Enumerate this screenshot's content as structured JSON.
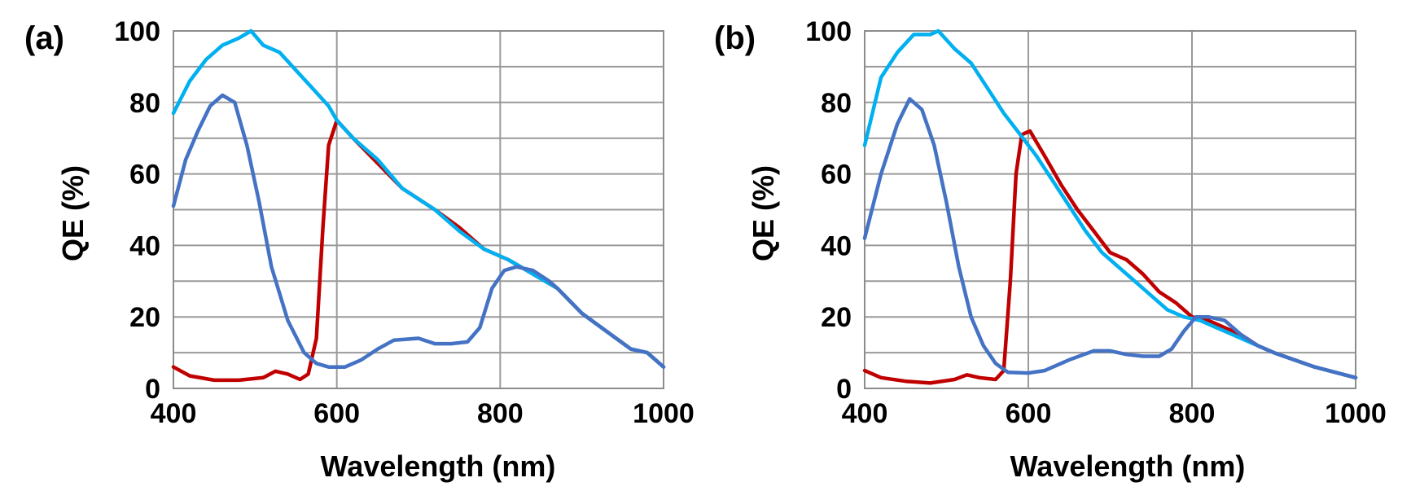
{
  "chart_data": [
    {
      "type": "line",
      "panel_label": "(a)",
      "xlabel": "Wavelength (nm)",
      "ylabel": "QE (%)",
      "xlim": [
        400,
        1000
      ],
      "ylim": [
        0,
        100
      ],
      "x_ticks": [
        "400",
        "600",
        "800",
        "1000"
      ],
      "y_ticks": [
        "0",
        "20",
        "40",
        "60",
        "80",
        "100"
      ],
      "grid": true,
      "series": [
        {
          "color": "#c00000",
          "points": [
            [
              400,
              6
            ],
            [
              420,
              3.5
            ],
            [
              450,
              2.3
            ],
            [
              480,
              2.3
            ],
            [
              510,
              3
            ],
            [
              525,
              4.8
            ],
            [
              540,
              4
            ],
            [
              555,
              2.5
            ],
            [
              565,
              4
            ],
            [
              575,
              14
            ],
            [
              583,
              45
            ],
            [
              590,
              68
            ],
            [
              600,
              75
            ],
            [
              620,
              70
            ],
            [
              650,
              63
            ],
            [
              680,
              56
            ],
            [
              720,
              50
            ],
            [
              750,
              45
            ],
            [
              780,
              39
            ],
            [
              810,
              36
            ],
            [
              840,
              32
            ],
            [
              870,
              28
            ],
            [
              900,
              21
            ],
            [
              930,
              16
            ],
            [
              960,
              11
            ],
            [
              980,
              10
            ],
            [
              1000,
              6
            ]
          ]
        },
        {
          "color": "#00b0f0",
          "points": [
            [
              400,
              77
            ],
            [
              420,
              86
            ],
            [
              440,
              92
            ],
            [
              460,
              96
            ],
            [
              480,
              98
            ],
            [
              495,
              100
            ],
            [
              510,
              96
            ],
            [
              530,
              94
            ],
            [
              550,
              89
            ],
            [
              570,
              84
            ],
            [
              590,
              79
            ],
            [
              600,
              75
            ],
            [
              620,
              70
            ],
            [
              650,
              64
            ],
            [
              680,
              56
            ],
            [
              720,
              50
            ],
            [
              750,
              44
            ],
            [
              780,
              39
            ],
            [
              810,
              36
            ],
            [
              840,
              32
            ],
            [
              870,
              28
            ],
            [
              900,
              21
            ],
            [
              930,
              16
            ],
            [
              960,
              11
            ],
            [
              980,
              10
            ],
            [
              1000,
              6
            ]
          ]
        },
        {
          "color": "#4472c4",
          "points": [
            [
              400,
              51
            ],
            [
              415,
              64
            ],
            [
              430,
              72
            ],
            [
              445,
              79
            ],
            [
              460,
              82
            ],
            [
              475,
              80
            ],
            [
              490,
              68
            ],
            [
              505,
              52
            ],
            [
              520,
              34
            ],
            [
              540,
              19
            ],
            [
              560,
              10
            ],
            [
              575,
              7
            ],
            [
              590,
              6
            ],
            [
              610,
              6
            ],
            [
              630,
              8
            ],
            [
              650,
              11
            ],
            [
              670,
              13.5
            ],
            [
              700,
              14
            ],
            [
              720,
              12.5
            ],
            [
              740,
              12.5
            ],
            [
              760,
              13
            ],
            [
              775,
              17
            ],
            [
              790,
              28
            ],
            [
              805,
              33
            ],
            [
              820,
              34
            ],
            [
              840,
              33
            ],
            [
              860,
              30
            ],
            [
              870,
              28
            ],
            [
              900,
              21
            ],
            [
              930,
              16
            ],
            [
              960,
              11
            ],
            [
              980,
              10
            ],
            [
              1000,
              6
            ]
          ]
        }
      ]
    },
    {
      "type": "line",
      "panel_label": "(b)",
      "xlabel": "Wavelength (nm)",
      "ylabel": "QE (%)",
      "xlim": [
        400,
        1000
      ],
      "ylim": [
        0,
        100
      ],
      "x_ticks": [
        "400",
        "600",
        "800",
        "1000"
      ],
      "y_ticks": [
        "0",
        "20",
        "40",
        "60",
        "80",
        "100"
      ],
      "grid": true,
      "series": [
        {
          "color": "#c00000",
          "points": [
            [
              400,
              5
            ],
            [
              420,
              3
            ],
            [
              450,
              2
            ],
            [
              480,
              1.5
            ],
            [
              510,
              2.5
            ],
            [
              525,
              3.8
            ],
            [
              540,
              3
            ],
            [
              560,
              2.5
            ],
            [
              570,
              5
            ],
            [
              578,
              30
            ],
            [
              585,
              60
            ],
            [
              592,
              71
            ],
            [
              602,
              72
            ],
            [
              620,
              65
            ],
            [
              640,
              57
            ],
            [
              660,
              50
            ],
            [
              680,
              44
            ],
            [
              700,
              38
            ],
            [
              720,
              36
            ],
            [
              740,
              32
            ],
            [
              760,
              27
            ],
            [
              780,
              24
            ],
            [
              800,
              20
            ],
            [
              820,
              19
            ],
            [
              840,
              17
            ],
            [
              860,
              15
            ],
            [
              880,
              12
            ],
            [
              900,
              10
            ],
            [
              950,
              6
            ],
            [
              1000,
              3
            ]
          ]
        },
        {
          "color": "#00b0f0",
          "points": [
            [
              400,
              68
            ],
            [
              420,
              87
            ],
            [
              440,
              94
            ],
            [
              460,
              99
            ],
            [
              480,
              99
            ],
            [
              490,
              100
            ],
            [
              510,
              95
            ],
            [
              530,
              91
            ],
            [
              550,
              84
            ],
            [
              570,
              77
            ],
            [
              590,
              71
            ],
            [
              610,
              65
            ],
            [
              630,
              58
            ],
            [
              650,
              51
            ],
            [
              670,
              44
            ],
            [
              690,
              38
            ],
            [
              710,
              34
            ],
            [
              730,
              30
            ],
            [
              750,
              26
            ],
            [
              770,
              22
            ],
            [
              790,
              20
            ],
            [
              810,
              19
            ],
            [
              830,
              17
            ],
            [
              850,
              15
            ],
            [
              870,
              13
            ],
            [
              900,
              10
            ],
            [
              950,
              6
            ],
            [
              1000,
              3
            ]
          ]
        },
        {
          "color": "#4472c4",
          "points": [
            [
              400,
              42
            ],
            [
              420,
              60
            ],
            [
              440,
              74
            ],
            [
              455,
              81
            ],
            [
              470,
              78
            ],
            [
              485,
              68
            ],
            [
              500,
              52
            ],
            [
              515,
              34
            ],
            [
              530,
              20
            ],
            [
              545,
              12
            ],
            [
              560,
              7
            ],
            [
              575,
              4.5
            ],
            [
              600,
              4.3
            ],
            [
              620,
              5
            ],
            [
              650,
              8
            ],
            [
              680,
              10.5
            ],
            [
              700,
              10.5
            ],
            [
              720,
              9.5
            ],
            [
              740,
              9
            ],
            [
              760,
              9
            ],
            [
              775,
              11
            ],
            [
              790,
              16
            ],
            [
              805,
              20
            ],
            [
              820,
              20
            ],
            [
              840,
              19
            ],
            [
              860,
              15
            ],
            [
              880,
              12
            ],
            [
              900,
              10
            ],
            [
              950,
              6
            ],
            [
              1000,
              3
            ]
          ]
        }
      ]
    }
  ]
}
